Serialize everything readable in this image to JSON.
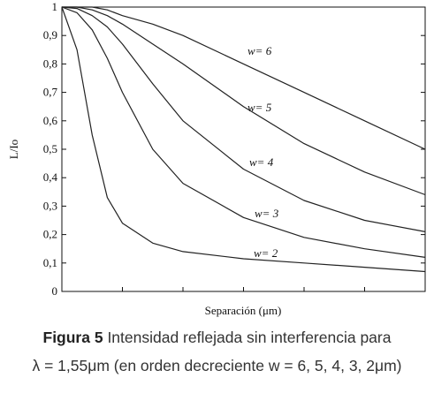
{
  "chart_data": {
    "type": "line",
    "x_label": "Separación (μm)",
    "y_label": "L/Io",
    "x": [
      0,
      0.25,
      0.5,
      0.75,
      1,
      1.5,
      2,
      3,
      4,
      5,
      6
    ],
    "xlim": [
      0,
      6
    ],
    "xticks": [
      0,
      1,
      2,
      3,
      4,
      5,
      6
    ],
    "ylim": [
      0,
      1
    ],
    "yticks": [
      0,
      {
        "value": 0.1,
        "label": "0,1"
      },
      {
        "value": 0.2,
        "label": "0,2"
      },
      {
        "value": 0.3,
        "label": "0,3"
      },
      {
        "value": 0.4,
        "label": "0,4"
      },
      {
        "value": 0.5,
        "label": "0,5"
      },
      {
        "value": 0.6,
        "label": "0,6"
      },
      {
        "value": 0.7,
        "label": "0,7"
      },
      {
        "value": 0.8,
        "label": "0,8"
      },
      {
        "value": 0.9,
        "label": "0,9"
      },
      1
    ],
    "series": [
      {
        "name": "w= 6",
        "color": "#222222",
        "values": [
          1,
          1,
          1,
          0.99,
          0.97,
          0.94,
          0.9,
          0.8,
          0.7,
          0.6,
          0.5
        ]
      },
      {
        "name": "w= 5",
        "color": "#222222",
        "values": [
          1,
          1,
          0.99,
          0.97,
          0.94,
          0.87,
          0.8,
          0.65,
          0.52,
          0.42,
          0.34
        ]
      },
      {
        "name": "w= 4",
        "color": "#222222",
        "values": [
          1,
          0.995,
          0.97,
          0.93,
          0.87,
          0.73,
          0.6,
          0.43,
          0.32,
          0.25,
          0.21
        ]
      },
      {
        "name": "w= 3",
        "color": "#222222",
        "values": [
          1,
          0.98,
          0.92,
          0.82,
          0.7,
          0.5,
          0.38,
          0.26,
          0.19,
          0.15,
          0.12
        ]
      },
      {
        "name": "w= 2",
        "color": "#222222",
        "values": [
          1,
          0.85,
          0.55,
          0.33,
          0.24,
          0.17,
          0.14,
          0.115,
          0.1,
          0.085,
          0.07
        ]
      }
    ]
  },
  "caption": {
    "label": "Figura 5",
    "text": " Intensidad reflejada sin interferencia para",
    "line2": "λ = 1,55μm (en orden decreciente w = 6, 5, 4, 3, 2μm)"
  }
}
